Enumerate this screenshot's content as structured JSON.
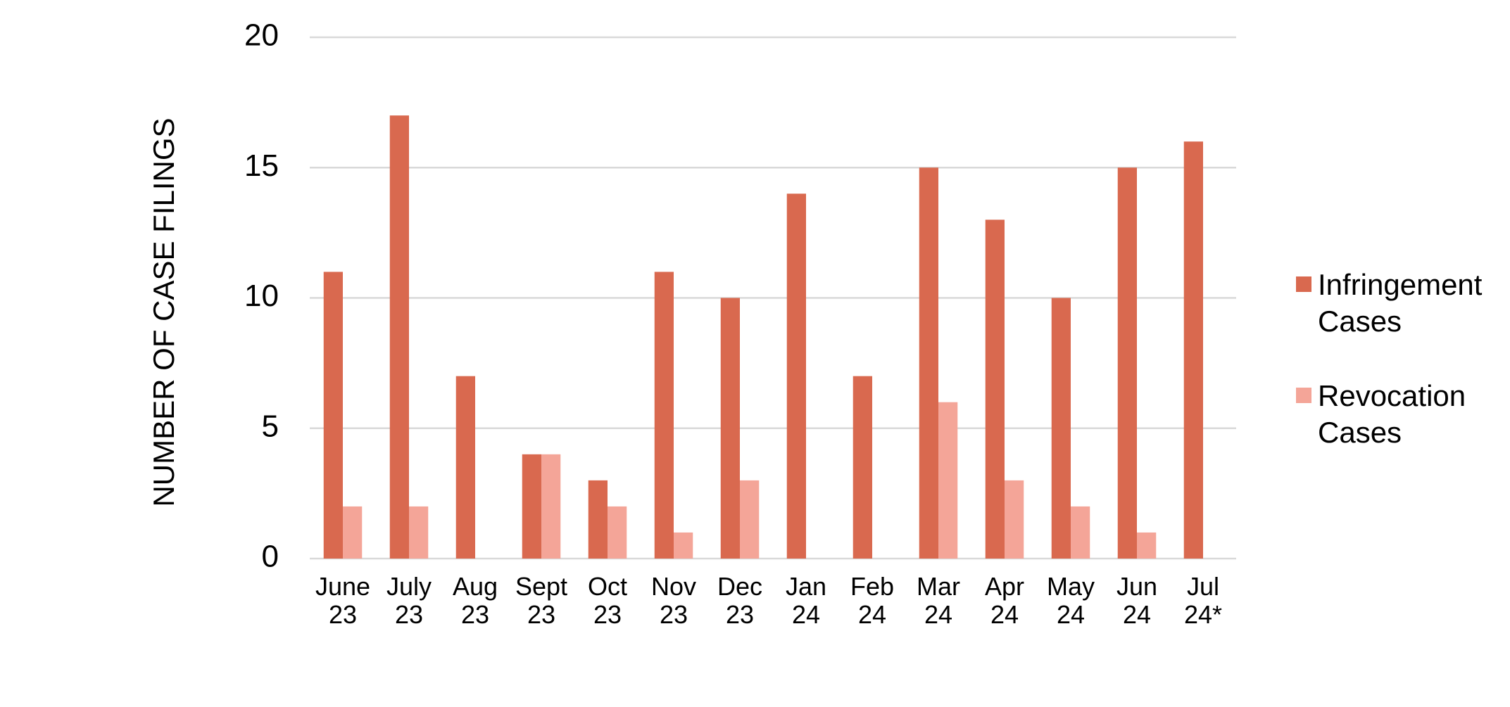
{
  "chart_data": {
    "type": "bar",
    "y_label": "NUMBER OF CASE FILINGS",
    "categories": [
      "June 23",
      "July 23",
      "Aug 23",
      "Sept 23",
      "Oct 23",
      "Nov 23",
      "Dec 23",
      "Jan 24",
      "Feb 24",
      "Mar 24",
      "Apr 24",
      "May 24",
      "Jun 24",
      "Jul 24*"
    ],
    "series": [
      {
        "name": "Infringement Cases",
        "color": "#d9694f",
        "values": [
          11,
          17,
          7,
          4,
          3,
          11,
          10,
          14,
          7,
          15,
          13,
          10,
          15,
          16
        ]
      },
      {
        "name": "Revocation Cases",
        "color": "#f4a598",
        "values": [
          2,
          2,
          0,
          4,
          2,
          1,
          3,
          0,
          0,
          6,
          3,
          2,
          1,
          0
        ]
      }
    ],
    "ylim": [
      0,
      20
    ],
    "yticks": [
      0,
      5,
      10,
      15,
      20
    ],
    "grid": true,
    "legend": "right"
  }
}
